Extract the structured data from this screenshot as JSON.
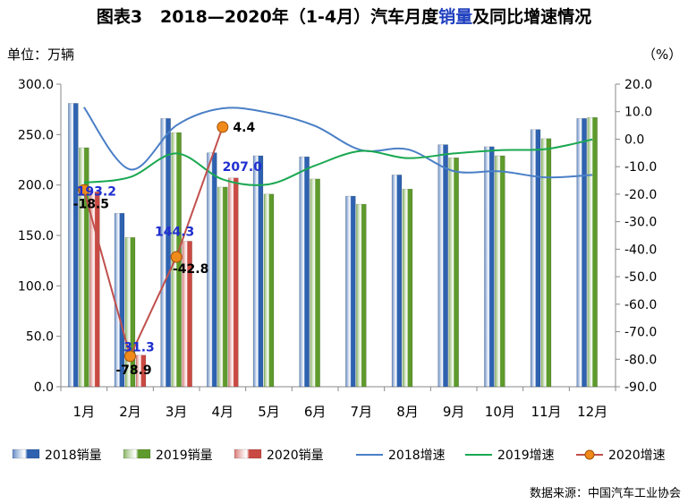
{
  "header": {
    "title_prefix": "图表3",
    "title_main": "2018—2020年（1-4月）汽车月度",
    "title_highlight": "销量",
    "title_suffix": "及同比增速情况",
    "unit_left": "单位：万辆",
    "unit_right": "（%）",
    "source": "数据来源：中国汽车工业协会"
  },
  "colors": {
    "bar_2018": "#2e62b0",
    "bar_2019": "#5e9a2c",
    "bar_2020": "#c94a43",
    "line_2018": "#4a7fc6",
    "line_2019": "#1aa851",
    "line_2020": "#c0504d",
    "marker_2020": "#f08a1a",
    "label_blue": "#1f2fd0",
    "label_black": "#000000"
  },
  "chart_data": {
    "type": "bar",
    "categories": [
      "1月",
      "2月",
      "3月",
      "4月",
      "5月",
      "6月",
      "7月",
      "8月",
      "9月",
      "10月",
      "11月",
      "12月"
    ],
    "y_left": {
      "min": 0,
      "max": 300,
      "step": 50,
      "tick_labels": [
        "0.0",
        "50.0",
        "100.0",
        "150.0",
        "200.0",
        "250.0",
        "300.0"
      ]
    },
    "y_right": {
      "min": -90,
      "max": 20,
      "step": 10,
      "tick_labels": [
        "-90.0",
        "-80.0",
        "-70.0",
        "-60.0",
        "-50.0",
        "-40.0",
        "-30.0",
        "-20.0",
        "-10.0",
        "0.0",
        "10.0",
        "20.0"
      ]
    },
    "series": [
      {
        "name": "2018销量",
        "kind": "bar",
        "axis": "left",
        "values": [
          281,
          172,
          266,
          232,
          229,
          228,
          189,
          210,
          240,
          238,
          255,
          266
        ]
      },
      {
        "name": "2019销量",
        "kind": "bar",
        "axis": "left",
        "values": [
          237,
          148,
          252,
          198,
          191,
          206,
          181,
          196,
          227,
          229,
          246,
          267
        ]
      },
      {
        "name": "2020销量",
        "kind": "bar",
        "axis": "left",
        "values": [
          193.2,
          31.3,
          144.3,
          207.0,
          null,
          null,
          null,
          null,
          null,
          null,
          null,
          null
        ],
        "labels": [
          "193.2",
          "31.3",
          "144.3",
          "207.0"
        ]
      },
      {
        "name": "2018增速",
        "kind": "line",
        "axis": "right",
        "values": [
          11.6,
          -11,
          5,
          11.2,
          9.6,
          4.8,
          -4,
          -3.7,
          -11.6,
          -11.7,
          -13.9,
          -13
        ]
      },
      {
        "name": "2019增速",
        "kind": "line",
        "axis": "right",
        "values": [
          -15.8,
          -13.8,
          -5.2,
          -14.6,
          -16.4,
          -9.6,
          -4.3,
          -6.9,
          -5.2,
          -4,
          -3.6,
          -0.1
        ]
      },
      {
        "name": "2020增速",
        "kind": "line",
        "axis": "right",
        "marker": true,
        "values": [
          -18.5,
          -78.9,
          -42.8,
          4.4,
          null,
          null,
          null,
          null,
          null,
          null,
          null,
          null
        ],
        "labels": [
          "-18.5",
          "-78.9",
          "-42.8",
          "4.4"
        ]
      }
    ]
  }
}
